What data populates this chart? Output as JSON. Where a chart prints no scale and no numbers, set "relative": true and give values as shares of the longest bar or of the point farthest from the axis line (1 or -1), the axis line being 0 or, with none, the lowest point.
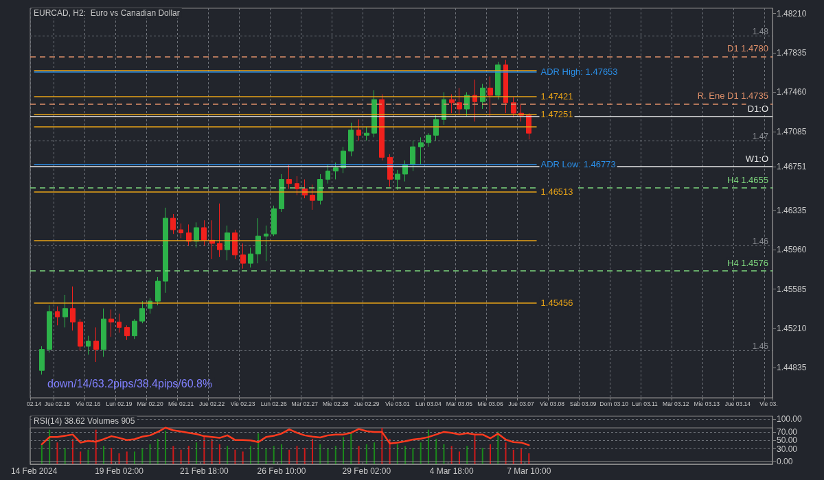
{
  "chart_data": [
    {
      "type": "candlestick",
      "title": "EURCAD, H2:  Euro vs Canadian Dollar",
      "categories": [
        "02.14",
        null,
        null,
        "Jue 02.15",
        null,
        null,
        null,
        "Vie 02.16",
        null,
        null,
        null,
        "Lun 02.19",
        null,
        null,
        null,
        "Mar 02.20",
        null,
        null,
        null,
        "Mie 02.21",
        null,
        null,
        null,
        "Jue 02.22",
        null,
        null,
        null,
        "Vie 02.23",
        null,
        null,
        null,
        "Lun 02.26",
        null,
        null,
        null,
        "Mar 02.27",
        null,
        null,
        null,
        "Mie 02.28",
        null,
        null,
        null,
        "Jue 02.29",
        null,
        null,
        null,
        "Vie 03.01",
        null,
        null,
        null,
        "Lun 03.04",
        null,
        null,
        null,
        "Mar 03.05",
        null,
        null,
        null,
        "Mie 03.06",
        null,
        null,
        null,
        "Jue 03.07",
        null,
        null,
        null,
        "Vie 03.08",
        null,
        null,
        null,
        "Sab 03.09",
        null,
        null,
        null,
        "Dom 03.10",
        null,
        null,
        null,
        "Lun 03.11",
        null,
        null,
        null,
        "Mar 03.12",
        null,
        null,
        null,
        "Mie 03.13",
        null,
        null,
        null,
        "Jue 03.14",
        null,
        null,
        null,
        "Vie 03."
      ],
      "ohlc": [
        null,
        [
          1.4481,
          1.4504,
          1.4477,
          1.4501
        ],
        [
          1.4501,
          1.4543,
          1.4498,
          1.4537
        ],
        [
          1.4537,
          1.4542,
          1.4524,
          1.4532
        ],
        [
          1.4532,
          1.4553,
          1.4522,
          1.454
        ],
        [
          1.454,
          1.4561,
          1.4519,
          1.4527
        ],
        [
          1.4527,
          1.453,
          1.45,
          1.4504
        ],
        [
          1.4504,
          1.4514,
          1.4496,
          1.4509
        ],
        [
          1.4509,
          1.4522,
          1.4489,
          1.4501
        ],
        [
          1.4501,
          1.454,
          1.4494,
          1.453
        ],
        [
          1.453,
          1.4539,
          1.4513,
          1.4527
        ],
        [
          1.4527,
          1.4535,
          1.4517,
          1.4522
        ],
        [
          1.4522,
          1.4524,
          1.451,
          1.4514
        ],
        [
          1.4514,
          1.453,
          1.4511,
          1.4528
        ],
        [
          1.4528,
          1.4547,
          1.4526,
          1.454
        ],
        [
          1.454,
          1.455,
          1.4535,
          1.4547
        ],
        [
          1.4547,
          1.457,
          1.4543,
          1.4566
        ],
        [
          1.4566,
          1.4636,
          1.4555,
          1.4626
        ],
        [
          1.4626,
          1.463,
          1.4611,
          1.4615
        ],
        [
          1.4615,
          1.4621,
          1.4607,
          1.4612
        ],
        [
          1.4612,
          1.462,
          1.46,
          1.4604
        ],
        [
          1.4604,
          1.4622,
          1.4598,
          1.4617
        ],
        [
          1.4617,
          1.4624,
          1.46,
          1.4605
        ],
        [
          1.4605,
          1.4624,
          1.4587,
          1.4602
        ],
        [
          1.4602,
          1.464,
          1.4589,
          1.4596
        ],
        [
          1.4596,
          1.4619,
          1.4586,
          1.4612
        ],
        [
          1.4612,
          1.4615,
          1.4587,
          1.4591
        ],
        [
          1.4591,
          1.4602,
          1.4578,
          1.4583
        ],
        [
          1.4583,
          1.4598,
          1.4579,
          1.4592
        ],
        [
          1.4592,
          1.4626,
          1.4583,
          1.4609
        ],
        [
          1.4609,
          1.4619,
          1.4585,
          1.4611
        ],
        [
          1.4611,
          1.4638,
          1.4609,
          1.4635
        ],
        [
          1.4635,
          1.4668,
          1.4632,
          1.4663
        ],
        [
          1.4663,
          1.4677,
          1.4654,
          1.4659
        ],
        [
          1.4659,
          1.4666,
          1.4648,
          1.4654
        ],
        [
          1.4654,
          1.4663,
          1.4645,
          1.4648
        ],
        [
          1.4648,
          1.4658,
          1.4634,
          1.4643
        ],
        [
          1.4643,
          1.4668,
          1.4639,
          1.4663
        ],
        [
          1.4663,
          1.4677,
          1.4659,
          1.4671
        ],
        [
          1.4671,
          1.4679,
          1.4663,
          1.4674
        ],
        [
          1.4674,
          1.4694,
          1.4669,
          1.469
        ],
        [
          1.469,
          1.4717,
          1.4685,
          1.471
        ],
        [
          1.471,
          1.472,
          1.47,
          1.4705
        ],
        [
          1.4705,
          1.4713,
          1.47,
          1.4707
        ],
        [
          1.4707,
          1.4748,
          1.4703,
          1.4739
        ],
        [
          1.4739,
          1.4744,
          1.4681,
          1.4684
        ],
        [
          1.4684,
          1.4687,
          1.4656,
          1.4663
        ],
        [
          1.4663,
          1.4672,
          1.4653,
          1.4668
        ],
        [
          1.4668,
          1.4681,
          1.4661,
          1.4677
        ],
        [
          1.4677,
          1.47,
          1.4671,
          1.4694
        ],
        [
          1.4694,
          1.4703,
          1.4677,
          1.4698
        ],
        [
          1.4698,
          1.4707,
          1.4694,
          1.4705
        ],
        [
          1.4705,
          1.4724,
          1.47,
          1.472
        ],
        [
          1.472,
          1.4746,
          1.4715,
          1.4739
        ],
        [
          1.4739,
          1.4744,
          1.4726,
          1.4736
        ],
        [
          1.4736,
          1.475,
          1.4724,
          1.473
        ],
        [
          1.473,
          1.4746,
          1.4723,
          1.4743
        ],
        [
          1.4743,
          1.4758,
          1.4718,
          1.4737
        ],
        [
          1.4737,
          1.4754,
          1.473,
          1.475
        ],
        [
          1.475,
          1.4761,
          1.4723,
          1.4743
        ],
        [
          1.4743,
          1.4775,
          1.4739,
          1.4772
        ],
        [
          1.4772,
          1.4777,
          1.4726,
          1.4736
        ],
        [
          1.4736,
          1.4741,
          1.4722,
          1.4726
        ],
        [
          1.4726,
          1.4735,
          1.4718,
          1.4724
        ],
        [
          1.4724,
          1.4726,
          1.4701,
          1.4707
        ],
        null,
        null,
        null,
        null,
        null,
        null,
        null,
        null,
        null,
        null,
        null,
        null,
        null,
        null,
        null,
        null,
        null,
        null,
        null,
        null,
        null,
        null,
        null,
        null,
        null,
        null,
        null,
        null,
        null,
        null,
        null
      ],
      "colors": [
        null,
        "#2db34a",
        "#2db34a",
        "#f0211d",
        "#2db34a",
        "#f0211d",
        "#f0211d",
        "#2db34a",
        "#f0211d",
        "#2db34a",
        "#f0211d",
        "#f0211d",
        "#f0211d",
        "#2db34a",
        "#2db34a",
        "#2db34a",
        "#2db34a",
        "#2db34a",
        "#f0211d",
        "#f0211d",
        "#f0211d",
        "#2db34a",
        "#f0211d",
        "#f0211d",
        "#f0211d",
        "#2db34a",
        "#f0211d",
        "#f0211d",
        "#2db34a",
        "#2db34a",
        "#2db34a",
        "#2db34a",
        "#2db34a",
        "#f0211d",
        "#f0211d",
        "#f0211d",
        "#f0211d",
        "#2db34a",
        "#2db34a",
        "#2db34a",
        "#2db34a",
        "#2db34a",
        "#f0211d",
        "#2db34a",
        "#2db34a",
        "#f0211d",
        "#f0211d",
        "#2db34a",
        "#2db34a",
        "#2db34a",
        "#2db34a",
        "#2db34a",
        "#2db34a",
        "#2db34a",
        "#f0211d",
        "#f0211d",
        "#2db34a",
        "#f0211d",
        "#2db34a",
        "#f0211d",
        "#2db34a",
        "#f0211d",
        "#f0211d",
        "#f0211d",
        "#f0211d",
        null,
        null,
        null,
        null,
        null,
        null,
        null,
        null,
        null,
        null,
        null,
        null,
        null,
        null,
        null,
        null,
        null,
        null,
        null,
        null,
        null,
        null,
        null,
        null,
        null,
        null,
        null,
        null,
        null,
        null,
        null
      ],
      "ylim": [
        1.4455,
        1.4826
      ],
      "yticks": [
        1.44835,
        {
          "value": 1.4521,
          "label": "1.45210"
        },
        1.45585,
        {
          "value": 1.4596,
          "label": "1.45960"
        },
        1.46335,
        1.46751,
        1.47085,
        {
          "value": 1.4746,
          "label": "1.47460"
        },
        1.47835,
        {
          "value": 1.4821,
          "label": "1.48210"
        }
      ],
      "y2lim": [
        1.4455,
        1.4826
      ],
      "y2ticks": [
        1.45,
        1.46,
        1.47,
        1.48
      ],
      "grid": true,
      "ref_lines": [
        {
          "axis": "y",
          "value": 1.478,
          "label": "D1 1.4780",
          "color": "#e0906a",
          "line_style": "dashed"
        },
        {
          "axis": "y",
          "value": 1.4767,
          "label": null,
          "color": "#e8a317"
        },
        {
          "axis": "y",
          "value": 1.47653,
          "label": "ADR High: 1.47653",
          "color": "#2b8fe8"
        },
        {
          "axis": "y",
          "value": 1.47421,
          "label": "1.47421",
          "color": "#e8a317"
        },
        {
          "axis": "y",
          "value": 1.4735,
          "label": "R. Ene D1 1.4735",
          "color": "#e0906a",
          "line_style": "dashed"
        },
        {
          "axis": "y",
          "value": 1.47251,
          "label": "1.47251",
          "color": "#e8a317"
        },
        {
          "axis": "y",
          "value": 1.4723,
          "label": "D1:O",
          "color": "#e6e6e6",
          "line_style": "solid"
        },
        {
          "axis": "y",
          "value": 1.4713,
          "label": null,
          "color": "#e8a317"
        },
        {
          "axis": "y",
          "value": 1.46773,
          "label": "ADR Low: 1.46773",
          "color": "#2b8fe8"
        },
        {
          "axis": "y",
          "value": 1.46751,
          "label": "W1:O",
          "color": "#e6e6e6",
          "line_style": "solid"
        },
        {
          "axis": "y",
          "value": 1.4655,
          "label": "H4 1.4655",
          "color": "#7ed67e",
          "line_style": "dashed"
        },
        {
          "axis": "y",
          "value": 1.46513,
          "label": "1.46513",
          "color": "#e8a317"
        },
        {
          "axis": "y",
          "value": 1.4605,
          "label": null,
          "color": "#e8a317"
        },
        {
          "axis": "y",
          "value": 1.4576,
          "label": "H4 1.4576",
          "color": "#7ed67e",
          "line_style": "dashed"
        },
        {
          "axis": "y",
          "value": 1.45456,
          "label": "1.45456",
          "color": "#e8a317"
        }
      ],
      "annotations": [
        "down/14/63.2pips/38.4pips/60.8%"
      ]
    },
    {
      "type": "line",
      "title": "RSI(14) 38.62 Volumes 905",
      "categories": [
        "14 Feb 2024",
        null,
        null,
        null,
        null,
        null,
        null,
        null,
        null,
        null,
        null,
        "19 Feb 02:00",
        null,
        null,
        null,
        null,
        null,
        null,
        null,
        null,
        null,
        null,
        "21 Feb 18:00",
        null,
        null,
        null,
        null,
        null,
        null,
        null,
        null,
        null,
        "26 Feb 10:00",
        null,
        null,
        null,
        null,
        null,
        null,
        null,
        null,
        null,
        null,
        "29 Feb 02:00",
        null,
        null,
        null,
        null,
        null,
        null,
        null,
        null,
        null,
        null,
        "4 Mar 18:00",
        null,
        null,
        null,
        null,
        null,
        null,
        null,
        null,
        null,
        "7 Mar 10:00",
        null,
        null,
        null,
        null,
        null,
        null,
        null,
        null,
        null,
        null,
        null,
        null,
        null,
        null,
        null,
        null,
        null,
        null,
        null,
        null,
        null,
        null,
        null,
        null,
        null,
        null,
        null,
        null,
        null,
        null,
        null
      ],
      "series": [
        {
          "color": "#ff3b1f",
          "values": [
            null,
            41,
            58,
            58,
            61,
            64,
            45,
            49,
            47,
            53,
            60,
            56,
            51,
            53,
            59,
            62,
            70,
            80,
            74,
            71,
            68,
            65,
            60,
            58,
            56,
            62,
            51,
            51,
            50,
            46,
            58,
            61,
            66,
            76,
            68,
            62,
            59,
            57,
            62,
            64,
            64,
            68,
            77,
            72,
            70,
            70,
            43,
            45,
            48,
            52,
            54,
            58,
            64,
            70,
            68,
            64,
            67,
            64,
            64,
            55,
            66,
            52,
            46,
            45,
            39,
            null,
            null,
            null,
            null,
            null,
            null,
            null,
            null,
            null,
            null,
            null,
            null,
            null,
            null,
            null,
            null,
            null,
            null,
            null,
            null,
            null,
            null,
            null,
            null,
            null,
            null,
            null,
            null,
            null,
            null,
            null
          ]
        }
      ],
      "ylim": [
        -6,
        107
      ],
      "yticks": [
        {
          "value": 0,
          "label": "0.00"
        },
        {
          "value": 30,
          "label": "30.00"
        },
        {
          "value": 50,
          "label": "50.00"
        },
        {
          "value": 70,
          "label": "70.00"
        },
        {
          "value": 100,
          "label": "100.00"
        }
      ],
      "grid": "y"
    },
    {
      "type": "bar",
      "relative": true,
      "categories": [
        null,
        null,
        null,
        null,
        null,
        null,
        null,
        null,
        null,
        null,
        null,
        null,
        null,
        null,
        null,
        null,
        null,
        null,
        null,
        null,
        null,
        null,
        null,
        null,
        null,
        null,
        null,
        null,
        null,
        null,
        null,
        null,
        null,
        null,
        null,
        null,
        null,
        null,
        null,
        null,
        null,
        null,
        null,
        null,
        null,
        null,
        null,
        null,
        null,
        null,
        null,
        null,
        null,
        null,
        null,
        null,
        null,
        null,
        null,
        null,
        null,
        null,
        null,
        null,
        null,
        null,
        null,
        null,
        null,
        null,
        null,
        null,
        null,
        null,
        null,
        null,
        null,
        null,
        null,
        null,
        null,
        null,
        null,
        null,
        null,
        null,
        null,
        null,
        null,
        null,
        null,
        null,
        null,
        null,
        null,
        null
      ],
      "values": [
        null,
        0.55,
        0.95,
        0.6,
        0.45,
        0.7,
        0.35,
        0.4,
        0.95,
        0.5,
        0.45,
        0.3,
        0.35,
        0.35,
        0.45,
        0.55,
        0.7,
        0.92,
        0.5,
        0.4,
        0.5,
        0.6,
        0.75,
        0.7,
        0.55,
        0.5,
        0.4,
        0.35,
        0.5,
        0.85,
        0.45,
        0.5,
        0.55,
        0.4,
        0.5,
        0.45,
        0.7,
        0.55,
        0.45,
        0.5,
        0.75,
        0.85,
        0.5,
        0.55,
        0.6,
        1,
        0.7,
        0.55,
        0.5,
        0.45,
        0.6,
        0.95,
        0.7,
        0.55,
        0.5,
        0.35,
        0.5,
        0.8,
        0.45,
        0.55,
        0.9,
        0.6,
        0.4,
        0.45,
        0.3,
        null,
        null,
        null,
        null,
        null,
        null,
        null,
        null,
        null,
        null,
        null,
        null,
        null,
        null,
        null,
        null,
        null,
        null,
        null,
        null,
        null,
        null,
        null,
        null,
        null,
        null,
        null,
        null,
        null,
        null,
        null
      ],
      "colors": [
        null,
        "#1a8a1a",
        "#1a8a1a",
        "#d11a1a",
        "#1a8a1a",
        "#d11a1a",
        "#d11a1a",
        "#1a8a1a",
        "#d11a1a",
        "#1a8a1a",
        "#d11a1a",
        "#d11a1a",
        "#d11a1a",
        "#1a8a1a",
        "#1a8a1a",
        "#1a8a1a",
        "#1a8a1a",
        "#1a8a1a",
        "#d11a1a",
        "#d11a1a",
        "#d11a1a",
        "#1a8a1a",
        "#d11a1a",
        "#d11a1a",
        "#d11a1a",
        "#1a8a1a",
        "#d11a1a",
        "#d11a1a",
        "#1a8a1a",
        "#1a8a1a",
        "#1a8a1a",
        "#1a8a1a",
        "#1a8a1a",
        "#d11a1a",
        "#d11a1a",
        "#d11a1a",
        "#d11a1a",
        "#1a8a1a",
        "#1a8a1a",
        "#1a8a1a",
        "#1a8a1a",
        "#1a8a1a",
        "#d11a1a",
        "#1a8a1a",
        "#1a8a1a",
        "#d11a1a",
        "#d11a1a",
        "#1a8a1a",
        "#1a8a1a",
        "#1a8a1a",
        "#1a8a1a",
        "#1a8a1a",
        "#1a8a1a",
        "#1a8a1a",
        "#d11a1a",
        "#d11a1a",
        "#1a8a1a",
        "#d11a1a",
        "#1a8a1a",
        "#d11a1a",
        "#1a8a1a",
        "#d11a1a",
        "#d11a1a",
        "#d11a1a",
        "#d11a1a",
        null,
        null,
        null,
        null,
        null,
        null,
        null,
        null,
        null,
        null,
        null,
        null,
        null,
        null,
        null,
        null,
        null,
        null,
        null,
        null,
        null,
        null,
        null,
        null,
        null,
        null,
        null,
        null,
        null,
        null,
        null
      ]
    }
  ]
}
